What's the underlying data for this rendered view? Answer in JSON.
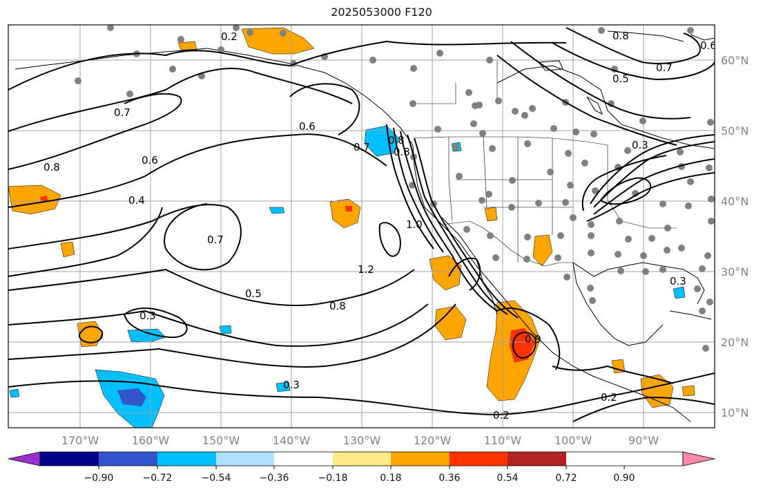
{
  "title": "2025053000 F120",
  "lat_labels": [
    "60°N",
    "50°N",
    "40°N",
    "30°N",
    "20°N",
    "10°N"
  ],
  "lon_labels": [
    "170°W",
    "160°W",
    "150°W",
    "140°W",
    "130°W",
    "120°W",
    "110°W",
    "100°W",
    "90°W"
  ],
  "colorbar": {
    "tick_labels": [
      "−0.90",
      "−0.72",
      "−0.54",
      "−0.36",
      "−0.18",
      "0.18",
      "0.36",
      "0.54",
      "0.72",
      "0.90"
    ],
    "colors": [
      "#9b30d0",
      "#00008b",
      "#3355cc",
      "#00bfff",
      "#b0e0ff",
      "#ffffff",
      "#ffea8a",
      "#ffa500",
      "#ff3300",
      "#b22222",
      "#ff88aa"
    ]
  },
  "contour_labels": [
    "0.2",
    "0.8",
    "0.7",
    "0.6",
    "0.8",
    "0.4",
    "0.6",
    "0.7",
    "0.7",
    "1.0",
    "0.8",
    "1.2",
    "0.5",
    "0.8",
    "0.3",
    "0.3",
    "0.2",
    "0.2",
    "0.8",
    "0.7",
    "0.5",
    "0.6",
    "0.3",
    "0.9",
    "0.3"
  ],
  "colors": {
    "frame": "#000000",
    "grid": "#a0a0a0",
    "station": "#808080",
    "coast": "#000000"
  }
}
